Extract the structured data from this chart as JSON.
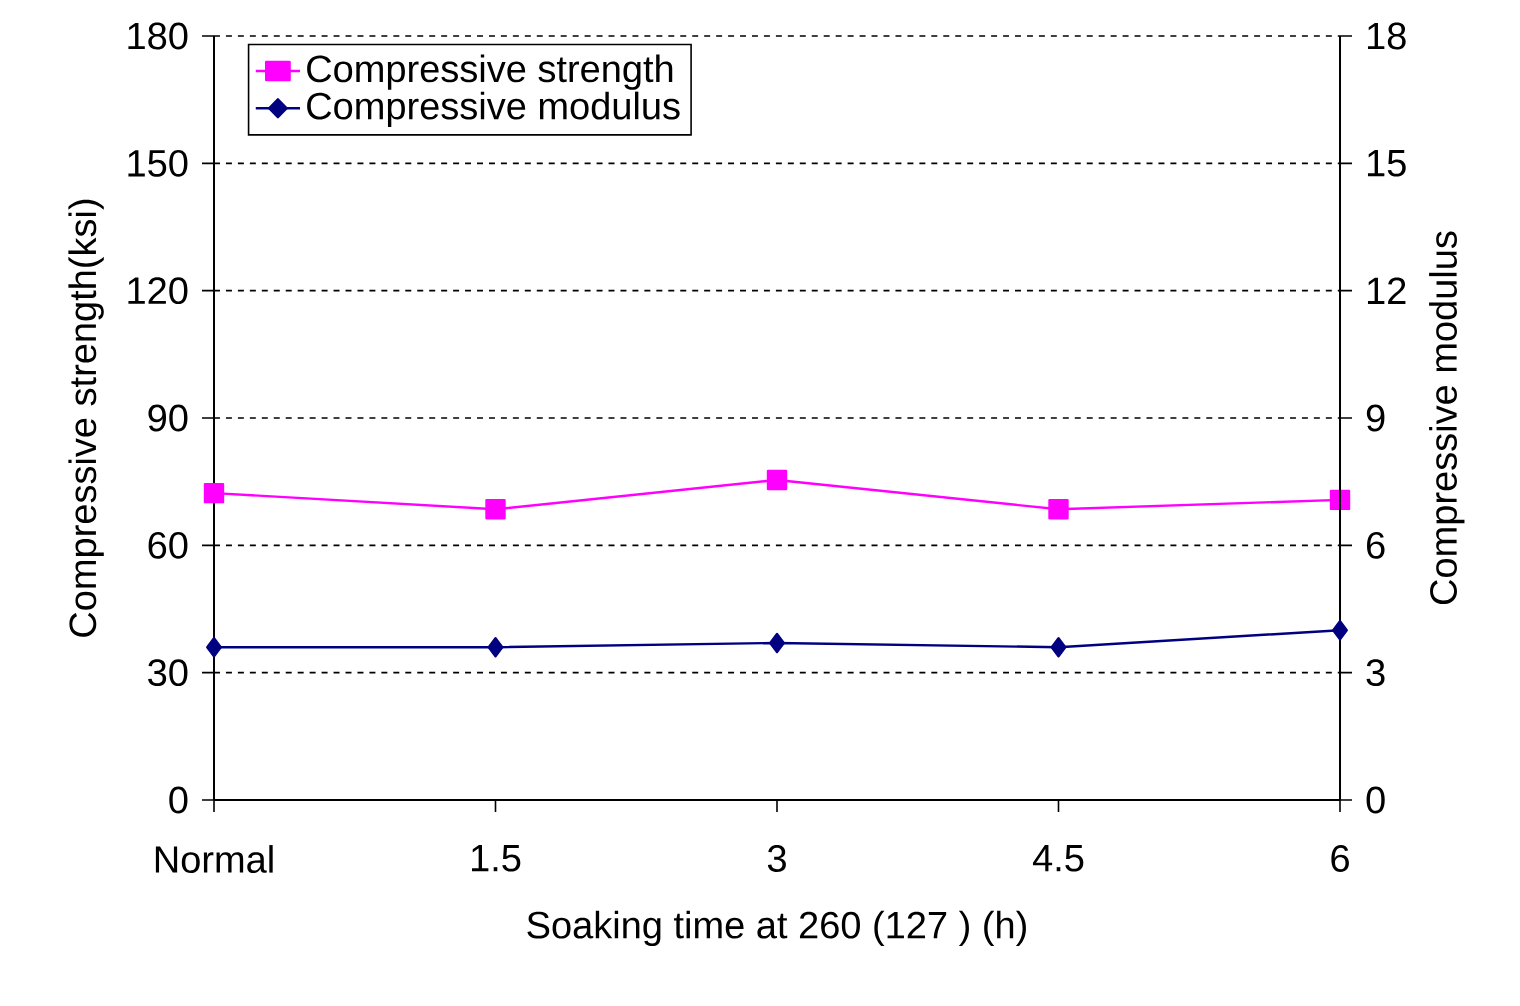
{
  "chart_data": {
    "type": "line",
    "xlabel": "Soaking time at 260    (127    ) (h)",
    "ylabel": "Compressive strength(ksi)",
    "y2label": "Compressive modulus",
    "categories": [
      "Normal",
      "1.5",
      "3",
      "4.5",
      "6"
    ],
    "series": [
      {
        "name": "Compressive strength",
        "color": "#ff00ff",
        "marker": "square",
        "values": [
          72.3,
          68.5,
          75.4,
          68.5,
          70.7
        ]
      },
      {
        "name": "Compressive modulus",
        "color": "#000080",
        "marker": "diamond",
        "axis": "y2",
        "values": [
          3.6,
          3.6,
          3.7,
          3.6,
          4.0
        ]
      }
    ],
    "ylim": [
      0,
      180
    ],
    "yticks": [
      0,
      30,
      60,
      90,
      120,
      150,
      180
    ],
    "y2lim": [
      0,
      18
    ],
    "y2ticks": [
      0,
      3,
      6,
      9,
      12,
      15,
      18
    ],
    "grid": "y",
    "legend": "top left",
    "line_style": "solid"
  }
}
